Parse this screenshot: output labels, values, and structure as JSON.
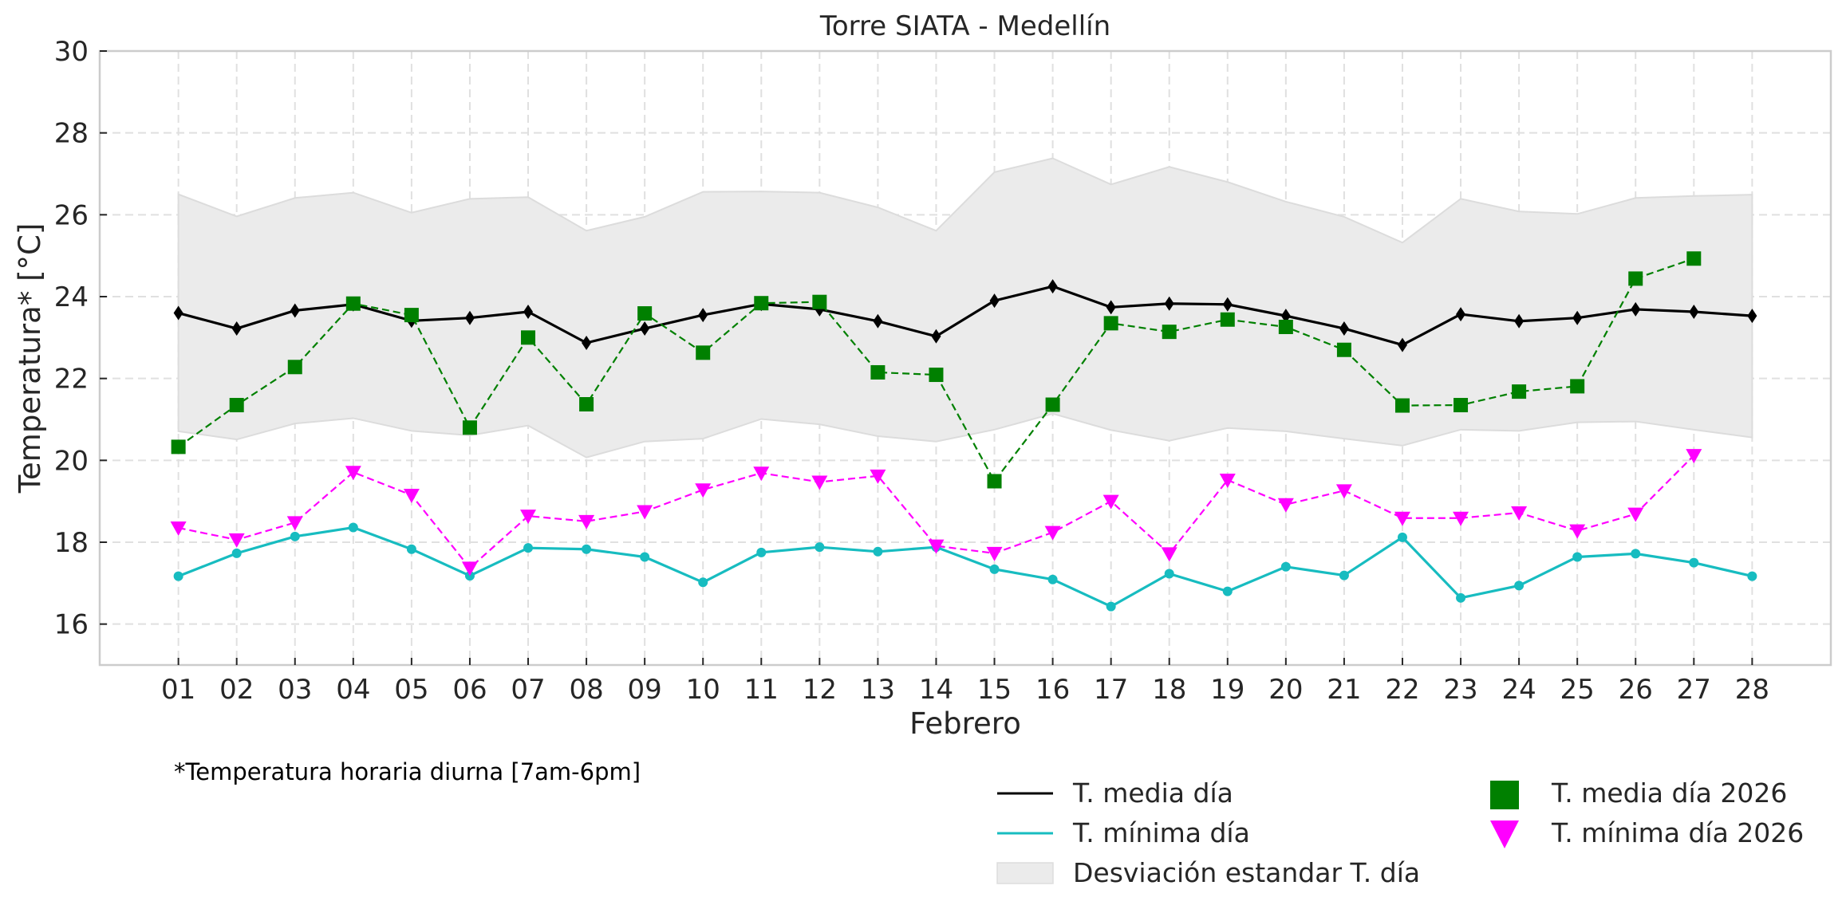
{
  "chart_data": {
    "type": "line",
    "title": "Torre SIATA - Medellín",
    "xlabel": "Febrero",
    "ylabel": "Temperatura* [°C]",
    "ylim": [
      15,
      30
    ],
    "yticks": [
      16,
      18,
      20,
      22,
      24,
      26,
      28,
      30
    ],
    "grid": true,
    "note": "*Temperatura horaria diurna [7am-6pm]",
    "legend_position": "bottom-right",
    "categories": [
      "01",
      "02",
      "03",
      "04",
      "05",
      "06",
      "07",
      "08",
      "09",
      "10",
      "11",
      "12",
      "13",
      "14",
      "15",
      "16",
      "17",
      "18",
      "19",
      "20",
      "21",
      "22",
      "23",
      "24",
      "25",
      "26",
      "27",
      "28"
    ],
    "series": [
      {
        "name": "T. media día",
        "color": "#000000",
        "style": "solid",
        "marker": "diamond",
        "values": [
          23.6,
          23.22,
          23.66,
          23.81,
          23.41,
          23.48,
          23.63,
          22.87,
          23.22,
          23.55,
          23.82,
          23.69,
          23.4,
          23.03,
          23.9,
          24.25,
          23.74,
          23.83,
          23.81,
          23.53,
          23.22,
          22.82,
          23.57,
          23.4,
          23.48,
          23.69,
          23.63,
          23.53
        ]
      },
      {
        "name": "T. mínima día",
        "color": "#17bcc0",
        "style": "solid",
        "marker": "circle",
        "values": [
          17.17,
          17.73,
          18.14,
          18.36,
          17.83,
          17.18,
          17.86,
          17.83,
          17.64,
          17.02,
          17.75,
          17.88,
          17.77,
          17.88,
          17.34,
          17.09,
          16.43,
          17.23,
          16.8,
          17.4,
          17.19,
          18.12,
          16.64,
          16.94,
          17.64,
          17.72,
          17.5,
          17.17
        ]
      },
      {
        "name": "T. media día 2026",
        "color": "#008000",
        "style": "dashed",
        "marker": "square",
        "values": [
          20.33,
          21.35,
          22.28,
          23.83,
          23.55,
          20.8,
          23.0,
          21.37,
          23.59,
          22.63,
          23.84,
          23.87,
          22.15,
          22.09,
          19.49,
          21.36,
          23.35,
          23.14,
          23.44,
          23.26,
          22.7,
          21.34,
          21.35,
          21.68,
          21.81,
          24.44,
          24.93,
          null
        ]
      },
      {
        "name": "T. mínima día 2026",
        "color": "#ff00ff",
        "style": "dashed",
        "marker": "triangle-down",
        "values": [
          18.35,
          18.06,
          18.48,
          19.71,
          19.15,
          17.37,
          18.64,
          18.51,
          18.75,
          19.28,
          19.69,
          19.47,
          19.62,
          17.91,
          17.73,
          18.24,
          19.0,
          17.72,
          19.52,
          18.92,
          19.26,
          18.59,
          18.59,
          18.72,
          18.28,
          18.69,
          20.12,
          null
        ]
      }
    ],
    "band": {
      "name": "Desviación estandar T. día",
      "color": "#ebebeb",
      "upper": [
        26.5,
        25.96,
        26.41,
        26.54,
        26.05,
        26.39,
        26.43,
        25.61,
        25.95,
        26.56,
        26.57,
        26.54,
        26.18,
        25.61,
        27.04,
        27.38,
        26.74,
        27.17,
        26.8,
        26.32,
        25.95,
        25.32,
        26.39,
        26.08,
        26.02,
        26.41,
        26.46,
        26.49
      ],
      "lower": [
        20.71,
        20.51,
        20.9,
        21.03,
        20.72,
        20.61,
        20.85,
        20.07,
        20.46,
        20.53,
        21.01,
        20.88,
        20.59,
        20.46,
        20.75,
        21.14,
        20.74,
        20.48,
        20.79,
        20.71,
        20.53,
        20.36,
        20.75,
        20.72,
        20.93,
        20.95,
        20.75,
        20.56
      ]
    },
    "legend": [
      {
        "label": "T. media día",
        "kind": "line",
        "color": "#000000"
      },
      {
        "label": "T. mínima día",
        "kind": "line",
        "color": "#17bcc0"
      },
      {
        "label": "Desviación estandar T. día",
        "kind": "patch",
        "color": "#ebebeb"
      },
      {
        "label": "T. media día 2026",
        "kind": "square",
        "color": "#008000"
      },
      {
        "label": "T. mínima día 2026",
        "kind": "triangle-down",
        "color": "#ff00ff"
      }
    ]
  }
}
